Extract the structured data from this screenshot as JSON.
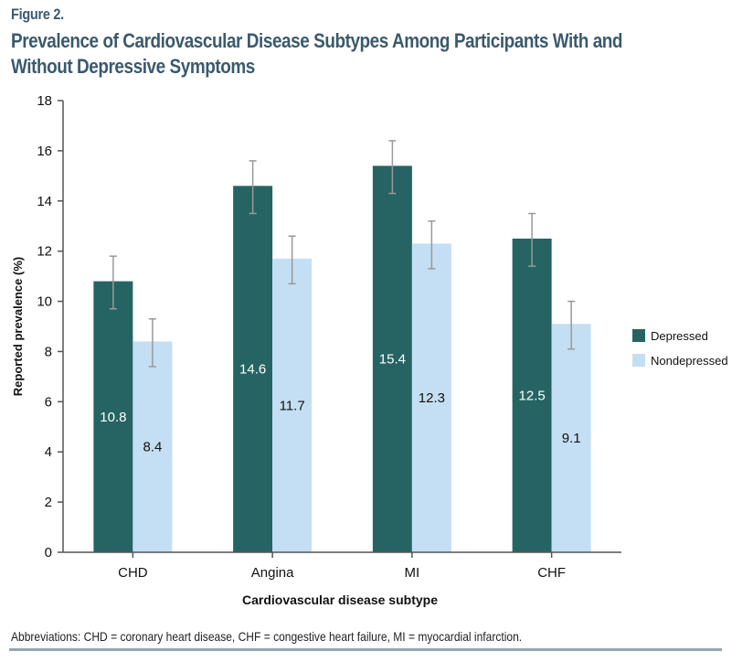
{
  "figure_label": "Figure 2.",
  "title": "Prevalence of Cardiovascular Disease Subtypes Among Participants With and Without Depressive Symptoms",
  "footnote": "Abbreviations: CHD = coronary heart disease, CHF = congestive heart failure, MI = myocardial infarction.",
  "colors": {
    "depressed": "#266464",
    "nondepressed": "#c4dff3",
    "title": "#3a5a6e",
    "error_bar": "#999999"
  },
  "chart_data": {
    "type": "bar",
    "title": "Prevalence of Cardiovascular Disease Subtypes Among Participants With and Without Depressive Symptoms",
    "xlabel": "Cardiovascular disease subtype",
    "ylabel": "Reported prevalence (%)",
    "ylim": [
      0,
      18
    ],
    "yticks": [
      0,
      2,
      4,
      6,
      8,
      10,
      12,
      14,
      16,
      18
    ],
    "grid": false,
    "legend_position": "right",
    "categories": [
      "CHD",
      "Angina",
      "MI",
      "CHF"
    ],
    "series": [
      {
        "name": "Depressed",
        "values": [
          10.8,
          14.6,
          15.4,
          12.5
        ],
        "labels": [
          "10.8",
          "14.6",
          "15.4",
          "12.5"
        ],
        "error_low": [
          9.7,
          13.5,
          14.3,
          11.4
        ],
        "error_high": [
          11.8,
          15.6,
          16.4,
          13.5
        ]
      },
      {
        "name": "Nondepressed",
        "values": [
          8.4,
          11.7,
          12.3,
          9.1
        ],
        "labels": [
          "8.4",
          "11.7",
          "12.3",
          "9.1"
        ],
        "error_low": [
          7.4,
          10.7,
          11.3,
          8.1
        ],
        "error_high": [
          9.3,
          12.6,
          13.2,
          10.0
        ]
      }
    ]
  }
}
